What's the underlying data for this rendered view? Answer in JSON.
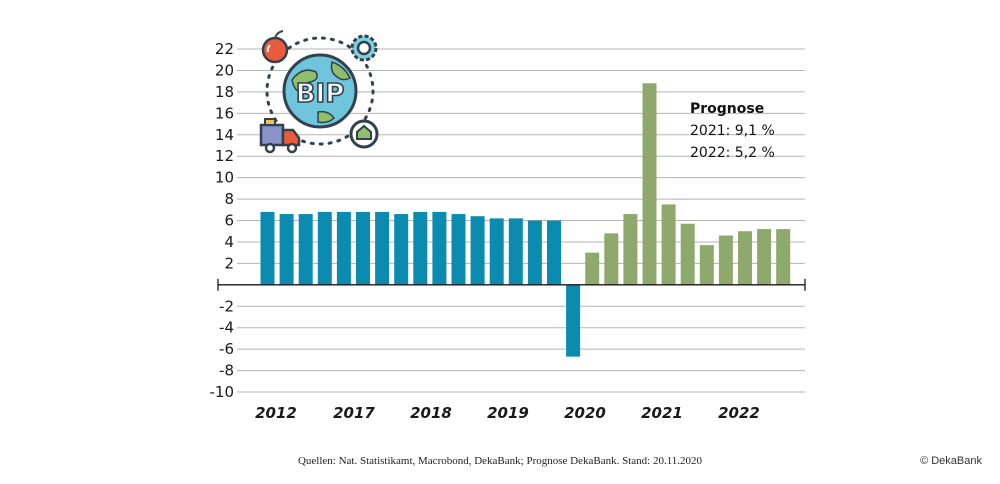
{
  "chart_data": {
    "type": "bar",
    "ylim": [
      -10,
      22
    ],
    "yticks": [
      22,
      20,
      18,
      16,
      14,
      12,
      10,
      8,
      6,
      4,
      2,
      -2,
      -4,
      -6,
      -8,
      -10
    ],
    "x_labels": [
      "2012",
      "2017",
      "2018",
      "2019",
      "2020",
      "2021",
      "2022"
    ],
    "series": [
      {
        "color": "#0c8bb0",
        "values": [
          6.8,
          6.6,
          6.6,
          6.8,
          6.8,
          6.8,
          6.8,
          6.6,
          6.8,
          6.8,
          6.6,
          6.4,
          6.2,
          6.2,
          6.0,
          6.0,
          -6.7
        ]
      },
      {
        "color": "#8fa86b",
        "values": [
          3.0,
          4.8,
          6.6,
          18.8,
          7.5,
          5.7,
          3.7,
          4.6,
          5.0,
          5.2,
          5.2
        ]
      }
    ],
    "annotation": {
      "title": "Prognose",
      "lines": [
        "2021: 9,1 %",
        "2022: 5,2 %"
      ]
    },
    "grid": true
  },
  "icon": {
    "label": "BIP",
    "name": "bip-globe-icon"
  },
  "footer": {
    "source": "Quellen: Nat. Statistikamt, Macrobond, DekaBank; Prognose DekaBank. Stand: 20.11.2020",
    "copyright": "© DekaBank"
  }
}
